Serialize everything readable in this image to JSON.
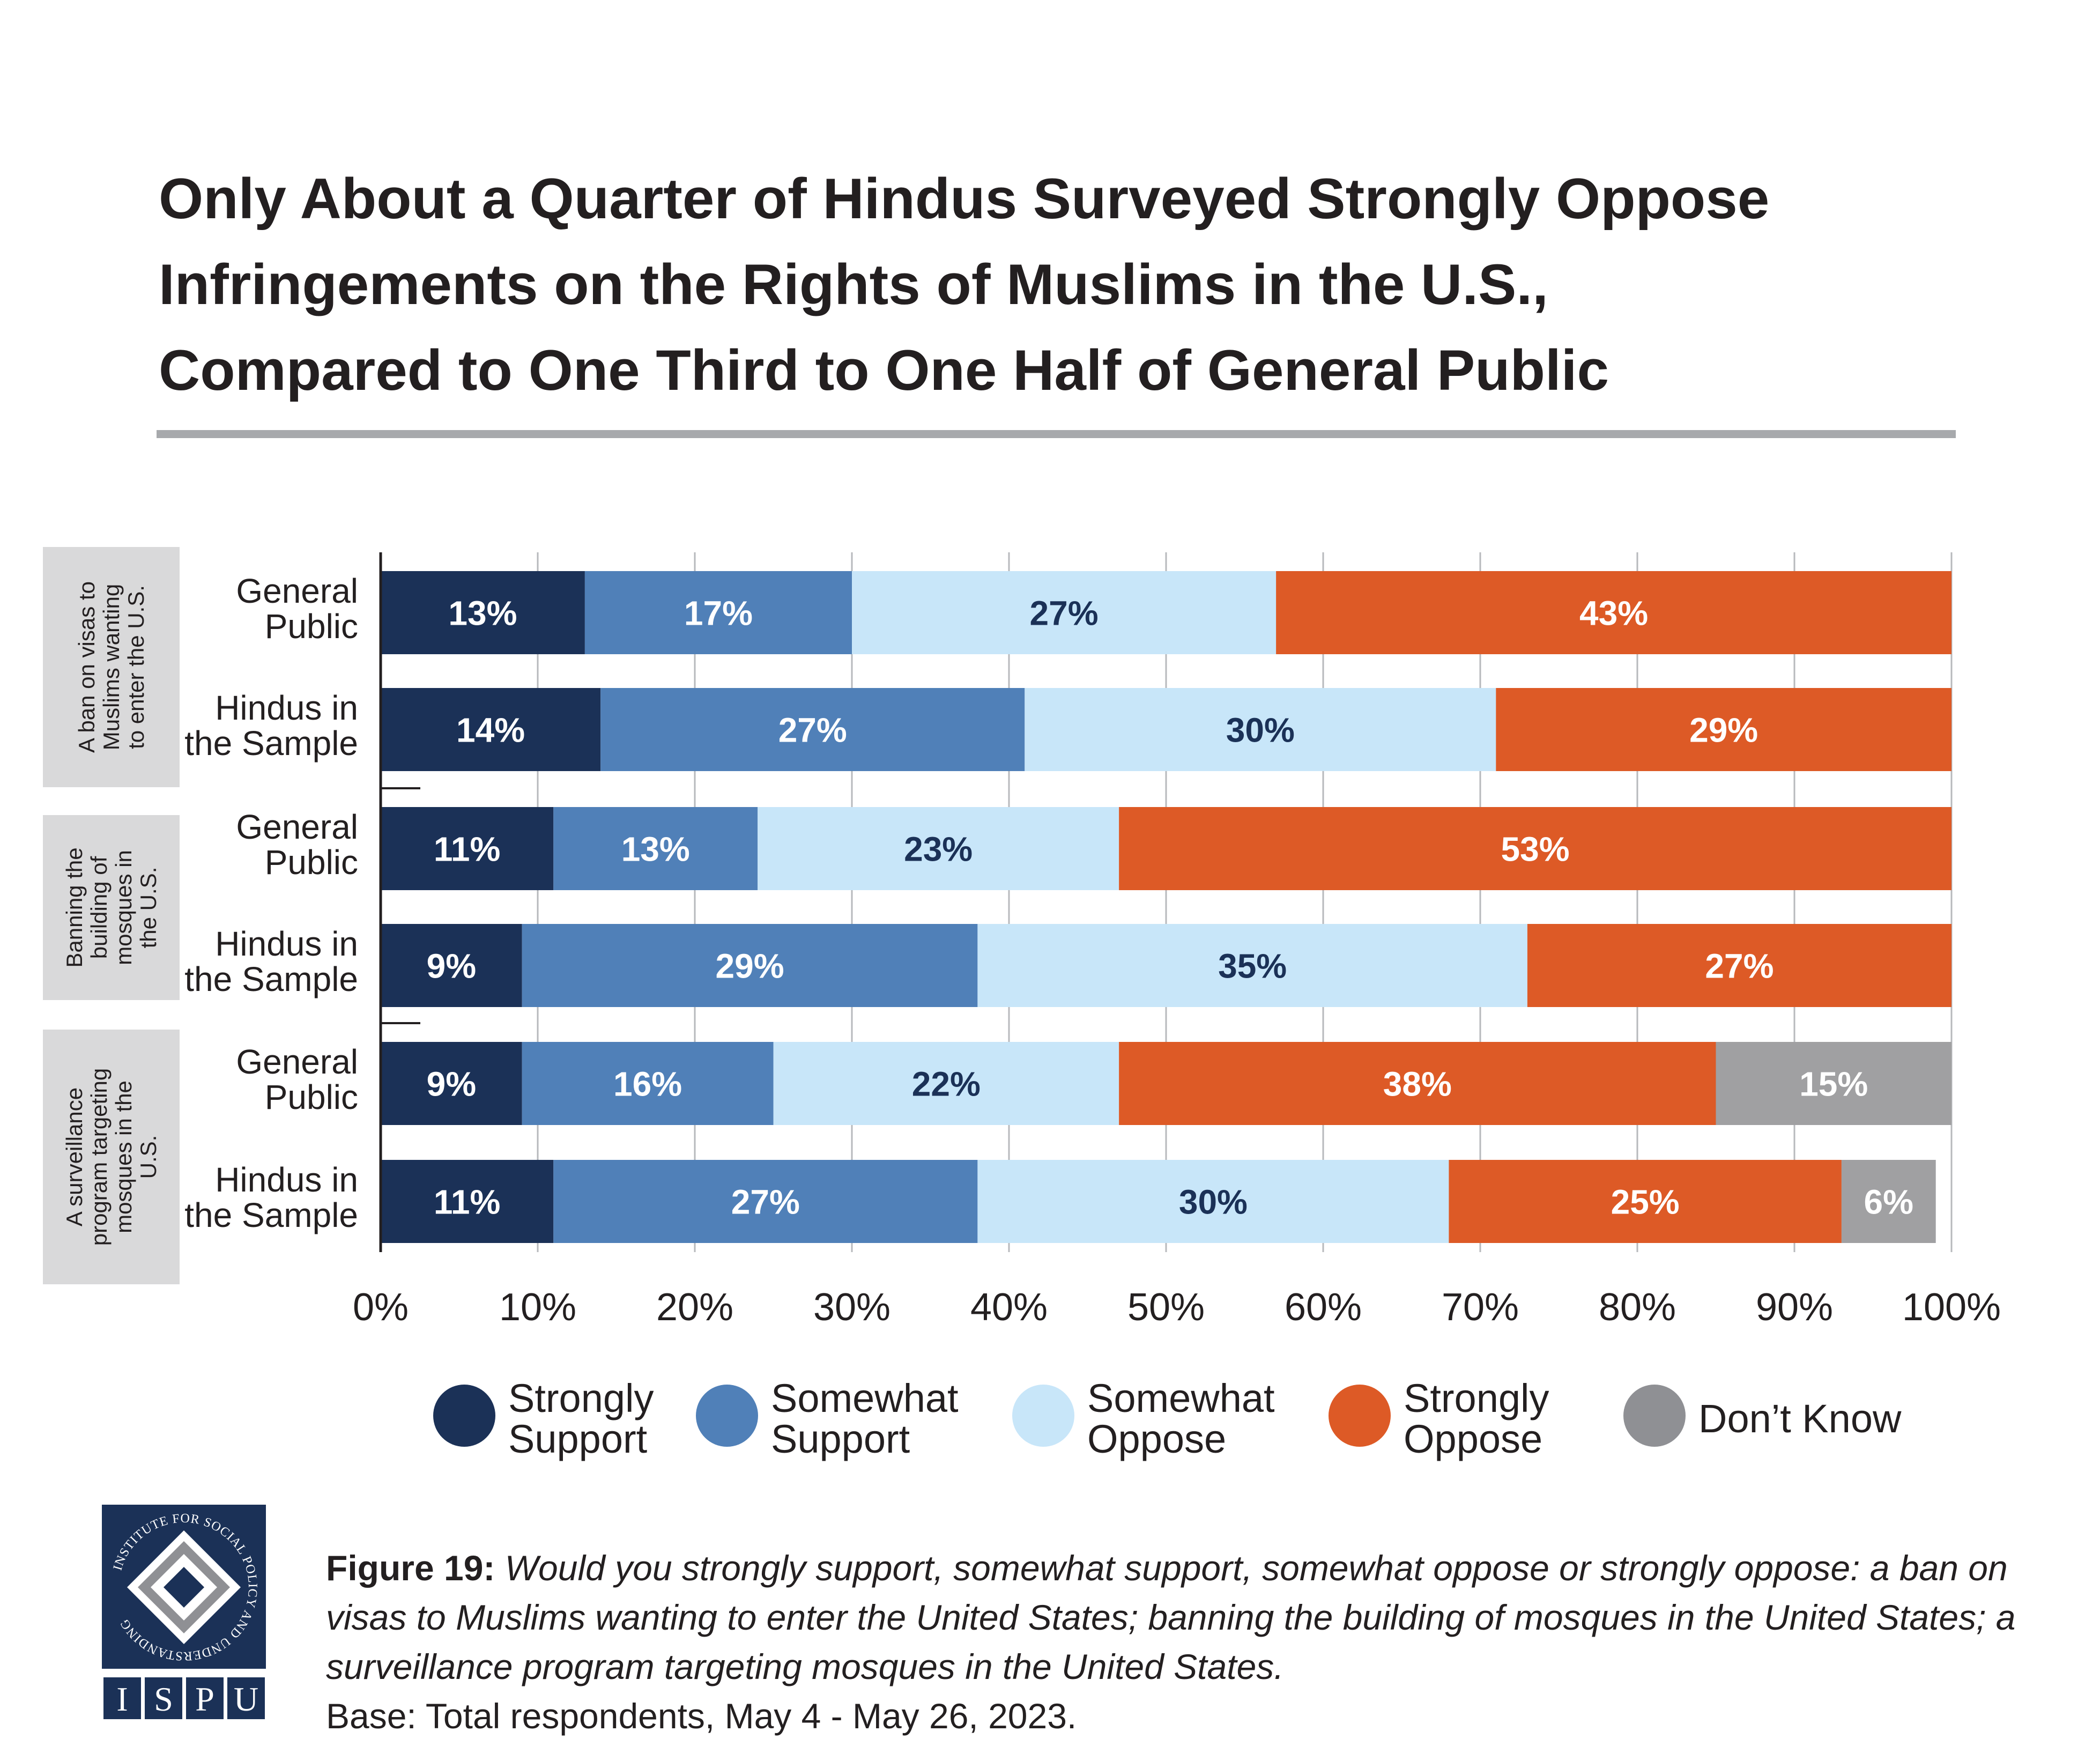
{
  "title_lines": [
    "Only About a Quarter of Hindus Surveyed Strongly Oppose",
    "Infringements on the Rights of Muslims in the U.S.,",
    "Compared to One Third to One Half of General Public"
  ],
  "chart_data": {
    "type": "bar",
    "orientation": "horizontal",
    "stacked": true,
    "x_ticks": [
      "0%",
      "10%",
      "20%",
      "30%",
      "40%",
      "50%",
      "60%",
      "70%",
      "80%",
      "90%",
      "100%"
    ],
    "xlim": [
      0,
      100
    ],
    "grid": true,
    "legend_position": "bottom",
    "groups": [
      {
        "label_lines": [
          "A ban on visas to",
          "Muslims wanting",
          "to enter the U.S."
        ]
      },
      {
        "label_lines": [
          "Banning the",
          "building of",
          "mosques in",
          "the U.S."
        ]
      },
      {
        "label_lines": [
          "A surveillance",
          "program targeting",
          "mosques in the",
          "U.S."
        ]
      }
    ],
    "rows": [
      {
        "group": 0,
        "label_lines": [
          "General",
          "Public"
        ],
        "values": [
          13,
          17,
          27,
          43,
          0
        ]
      },
      {
        "group": 0,
        "label_lines": [
          "Hindus in",
          "the Sample"
        ],
        "values": [
          14,
          27,
          30,
          29,
          0
        ]
      },
      {
        "group": 1,
        "label_lines": [
          "General",
          "Public"
        ],
        "values": [
          11,
          13,
          23,
          53,
          0
        ]
      },
      {
        "group": 1,
        "label_lines": [
          "Hindus in",
          "the Sample"
        ],
        "values": [
          9,
          29,
          35,
          27,
          0
        ]
      },
      {
        "group": 2,
        "label_lines": [
          "General",
          "Public"
        ],
        "values": [
          9,
          16,
          22,
          38,
          15
        ]
      },
      {
        "group": 2,
        "label_lines": [
          "Hindus in",
          "the Sample"
        ],
        "values": [
          11,
          27,
          30,
          25,
          6
        ]
      }
    ],
    "series": [
      {
        "name": "Strongly Support",
        "legend_lines": [
          "Strongly",
          "Support"
        ],
        "color": "#1b3157",
        "label_color": "#ffffff"
      },
      {
        "name": "Somewhat Support",
        "legend_lines": [
          "Somewhat",
          "Support"
        ],
        "color": "#5080b8",
        "label_color": "#ffffff"
      },
      {
        "name": "Somewhat Oppose",
        "legend_lines": [
          "Somewhat",
          "Oppose"
        ],
        "color": "#c8e6f9",
        "label_color": "#1b3157"
      },
      {
        "name": "Strongly Oppose",
        "legend_lines": [
          "Strongly",
          "Oppose"
        ],
        "color": "#dd5a26",
        "label_color": "#ffffff"
      },
      {
        "name": "Don’t Know",
        "legend_lines": [
          "Don’t Know"
        ],
        "color": "#a0a0a2",
        "legend_color": "#8f9094",
        "label_color": "#ffffff"
      }
    ]
  },
  "caption": {
    "figure_label": "Figure 19:",
    "question": "Would you strongly support, somewhat support, somewhat oppose or strongly oppose: a ban on visas to Muslims wanting to enter the United States; banning the building of mosques in the United States; a surveillance program targeting mosques in the United States.",
    "base": "Base: Total respondents, May 4 - May 26, 2023."
  },
  "logo": {
    "ring_text": "INSTITUTE FOR SOCIAL POLICY AND UNDERSTANDING",
    "letters": [
      "I",
      "S",
      "P",
      "U"
    ],
    "color": "#1b3157"
  }
}
